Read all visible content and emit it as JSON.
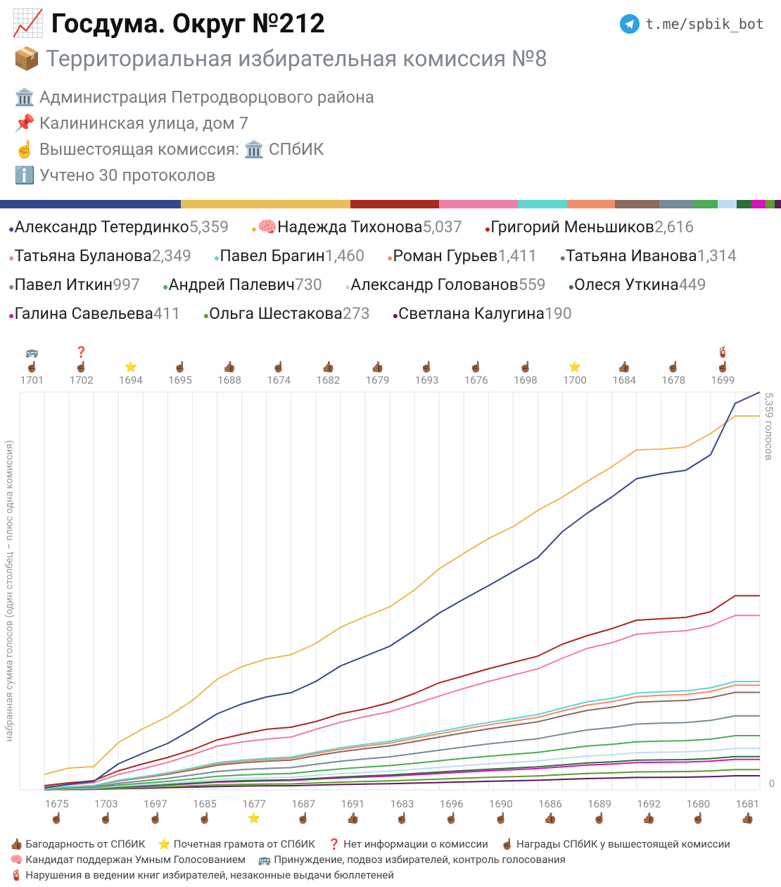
{
  "header": {
    "title": "📈 Госдума. Округ №212",
    "link": "t.me/spbik_bot",
    "subtitle": "📦 Территориальная избирательная комиссия №8",
    "info": [
      "🏛️ Администрация Петродворцового района",
      "📌 Калининская улица, дом 7",
      "☝️ Вышестоящая комиссия: 🏛️ СПбИК",
      "ℹ️ Учтено 30 протоколов"
    ]
  },
  "chart_data": {
    "type": "line",
    "y_label": "набранная сумма голосов (один столбец – плюс одна комиссия)",
    "ylim": [
      0,
      5359
    ],
    "yticks": [
      0,
      {
        "value": 5359,
        "label": "5,359 голосов"
      }
    ],
    "grid": true,
    "categories": [
      "1701",
      "1675",
      "1702",
      "1703",
      "1694",
      "1697",
      "1695",
      "1685",
      "1688",
      "1677",
      "1674",
      "1687",
      "1682",
      "1691",
      "1679",
      "1683",
      "1693",
      "1696",
      "1676",
      "1690",
      "1698",
      "1686",
      "1700",
      "1689",
      "1684",
      "1692",
      "1678",
      "1680",
      "1699",
      "1681"
    ],
    "category_icons": [
      [
        "🚌",
        "☝🏾"
      ],
      [
        "☝🏾"
      ],
      [
        "❓",
        "☝🏾"
      ],
      [
        "☝🏾"
      ],
      [
        "⭐"
      ],
      [
        "☝🏾"
      ],
      [
        "☝🏾"
      ],
      [
        "☝🏾"
      ],
      [
        "👍🏾"
      ],
      [
        "⭐"
      ],
      [
        "☝🏾"
      ],
      [
        "☝🏾"
      ],
      [
        "👍🏾"
      ],
      [
        "👍🏾"
      ],
      [
        "👍🏾"
      ],
      [
        "☝🏾"
      ],
      [
        "☝🏾"
      ],
      [
        "☝🏾"
      ],
      [
        "☝🏾"
      ],
      [
        "☝🏾"
      ],
      [
        "☝🏾"
      ],
      [
        "👍🏾"
      ],
      [
        "⭐"
      ],
      [
        "☝🏾"
      ],
      [
        "👍🏾"
      ],
      [
        "👍🏾"
      ],
      [
        "☝🏾"
      ],
      [
        "☝🏾"
      ],
      [
        "🧯",
        "☝🏾"
      ],
      [
        "👍🏾"
      ]
    ],
    "series": [
      {
        "name": "Александр Тетердинко",
        "color": "#34488f",
        "total": {
          "value": 5359,
          "label": "5,359"
        },
        "values": [
          28,
          48,
          38,
          237,
          142,
          133,
          190,
          208,
          133,
          95,
          57,
          152,
          208,
          133,
          133,
          218,
          228,
          189,
          181,
          189,
          190,
          351,
          247,
          218,
          246,
          67,
          47,
          209,
          692,
          152
        ]
      },
      {
        "name": "Надежда Тихонова",
        "badge": "🧠",
        "color": "#e9bc55",
        "total": {
          "value": 5037,
          "label": "5,037"
        },
        "values": [
          209,
          85,
          19,
          323,
          189,
          161,
          219,
          284,
          171,
          104,
          57,
          152,
          218,
          142,
          133,
          228,
          284,
          209,
          199,
          161,
          219,
          180,
          208,
          200,
          227,
          10,
          28,
          180,
          238,
          0
        ]
      },
      {
        "name": "Григорий Меньшиков",
        "color": "#a82b1f",
        "total": {
          "value": 2616,
          "label": "2,616"
        },
        "values": [
          57,
          38,
          28,
          133,
          95,
          85,
          105,
          132,
          76,
          67,
          28,
          76,
          104,
          67,
          85,
          123,
          143,
          95,
          94,
          86,
          85,
          161,
          114,
          95,
          114,
          19,
          19,
          76,
          216,
          0
        ]
      },
      {
        "name": "Татьяна Буланова",
        "color": "#ef7fa6",
        "total": {
          "value": 2349,
          "label": "2,349"
        },
        "values": [
          38,
          28,
          29,
          114,
          76,
          85,
          104,
          114,
          57,
          38,
          28,
          105,
          95,
          75,
          67,
          104,
          105,
          104,
          95,
          85,
          85,
          143,
          132,
          76,
          114,
          29,
          19,
          66,
          139,
          0
        ]
      },
      {
        "name": "Павел Брагин",
        "color": "#5fd6d0",
        "total": {
          "value": 1460,
          "label": "1,460"
        },
        "values": [
          24,
          17,
          18,
          71,
          47,
          53,
          65,
          71,
          35,
          24,
          17,
          65,
          59,
          47,
          42,
          65,
          65,
          65,
          59,
          53,
          53,
          89,
          82,
          47,
          71,
          18,
          12,
          41,
          85,
          0
        ]
      },
      {
        "name": "Роман Гурьев",
        "color": "#f28d6a",
        "total": {
          "value": 1411,
          "label": "1,411"
        },
        "values": [
          23,
          17,
          17,
          68,
          46,
          51,
          62,
          68,
          34,
          23,
          17,
          63,
          57,
          45,
          40,
          62,
          63,
          62,
          57,
          51,
          51,
          86,
          79,
          46,
          68,
          17,
          11,
          40,
          87,
          0
        ]
      },
      {
        "name": "Татьяна Иванова",
        "color": "#8c6a5e",
        "total": {
          "value": 1314,
          "label": "1,314"
        },
        "values": [
          22,
          16,
          17,
          64,
          43,
          48,
          58,
          64,
          32,
          21,
          16,
          59,
          53,
          42,
          38,
          58,
          59,
          58,
          53,
          48,
          48,
          80,
          74,
          43,
          64,
          16,
          11,
          37,
          72,
          0
        ]
      },
      {
        "name": "Павел Иткин",
        "color": "#768c96",
        "total": {
          "value": 997,
          "label": "997"
        },
        "values": [
          16,
          12,
          12,
          48,
          32,
          36,
          44,
          48,
          24,
          16,
          12,
          45,
          40,
          32,
          28,
          44,
          45,
          44,
          40,
          36,
          36,
          61,
          56,
          32,
          48,
          12,
          8,
          28,
          62,
          0
        ]
      },
      {
        "name": "Андрей Палевич",
        "color": "#4cad54",
        "total": {
          "value": 730,
          "label": "730"
        },
        "values": [
          12,
          9,
          9,
          35,
          24,
          26,
          32,
          35,
          18,
          12,
          9,
          33,
          29,
          23,
          21,
          32,
          33,
          32,
          29,
          26,
          26,
          44,
          41,
          23,
          35,
          9,
          6,
          20,
          47,
          0
        ]
      },
      {
        "name": "Александр Голованов",
        "color": "#bfdcf3",
        "total": {
          "value": 559,
          "label": "559"
        },
        "values": [
          9,
          7,
          7,
          27,
          18,
          20,
          25,
          27,
          14,
          9,
          7,
          25,
          23,
          18,
          16,
          25,
          25,
          25,
          23,
          20,
          20,
          34,
          31,
          18,
          27,
          7,
          5,
          16,
          31,
          0
        ]
      },
      {
        "name": "Олеся Уткина",
        "color": "#2d6f3a",
        "total": {
          "value": 449,
          "label": "449"
        },
        "values": [
          7,
          5,
          5,
          22,
          15,
          16,
          20,
          22,
          11,
          7,
          5,
          20,
          18,
          14,
          13,
          20,
          20,
          20,
          18,
          16,
          16,
          27,
          25,
          15,
          22,
          5,
          4,
          13,
          28,
          0
        ]
      },
      {
        "name": "Галина Савельева",
        "color": "#d612b8",
        "total": {
          "value": 411,
          "label": "411"
        },
        "values": [
          7,
          5,
          5,
          20,
          13,
          15,
          18,
          20,
          10,
          7,
          5,
          18,
          17,
          13,
          12,
          18,
          18,
          18,
          17,
          15,
          15,
          25,
          23,
          13,
          20,
          5,
          3,
          12,
          24,
          0
        ]
      },
      {
        "name": "Ольга Шестакова",
        "color": "#5f9a2e",
        "total": {
          "value": 273,
          "label": "273"
        },
        "values": [
          4,
          3,
          3,
          13,
          9,
          10,
          12,
          13,
          7,
          4,
          3,
          12,
          11,
          9,
          8,
          12,
          12,
          12,
          11,
          10,
          10,
          17,
          15,
          9,
          13,
          3,
          2,
          8,
          18,
          0
        ]
      },
      {
        "name": "Светлана Калугина",
        "color": "#5c1a5a",
        "total": {
          "value": 190,
          "label": "190"
        },
        "values": [
          3,
          2,
          2,
          9,
          6,
          7,
          8,
          9,
          5,
          3,
          2,
          8,
          8,
          6,
          5,
          8,
          8,
          8,
          8,
          7,
          7,
          12,
          11,
          6,
          9,
          2,
          2,
          6,
          13,
          0
        ]
      }
    ],
    "footer_legend": [
      "👍🏾 Багодарность от СПбИК",
      "⭐ Почетная грамота от СПбИК",
      "❓ Нет информации о комиссии",
      "☝🏾 Награды СПбИК у вышестоящей комиссии",
      "🧠 Кандидат поддержан Умным Голосованием",
      "🚌 Принуждение, подвоз избирателей, контроль голосования",
      "🧯 Нарушения в ведении книг избирателей, незаконные выдачи бюллетеней"
    ]
  }
}
